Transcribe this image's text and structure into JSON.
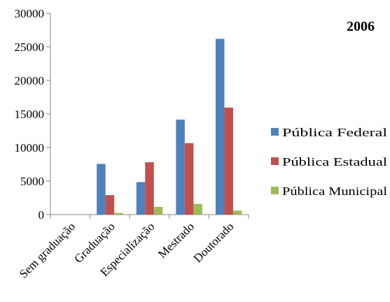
{
  "chart_data": {
    "type": "bar",
    "title": "2006",
    "xlabel": "",
    "ylabel": "",
    "ylim": [
      0,
      30000
    ],
    "yticks": [
      0,
      5000,
      10000,
      15000,
      20000,
      25000,
      30000
    ],
    "grid": false,
    "legend_position": "right",
    "categories": [
      "Sem graduação",
      "Graduação",
      "Especialização",
      "Mestrado",
      "Doutorado"
    ],
    "series": [
      {
        "name": "Pública Federal",
        "color": "#4F81BD",
        "values": [
          0,
          7550,
          4850,
          14150,
          26200
        ]
      },
      {
        "name": "Pública Estadual",
        "color": "#C0504D",
        "values": [
          0,
          2900,
          7800,
          10650,
          15950
        ]
      },
      {
        "name": "Pública Municipal",
        "color": "#9BBB59",
        "values": [
          0,
          250,
          1150,
          1600,
          600
        ]
      }
    ]
  }
}
